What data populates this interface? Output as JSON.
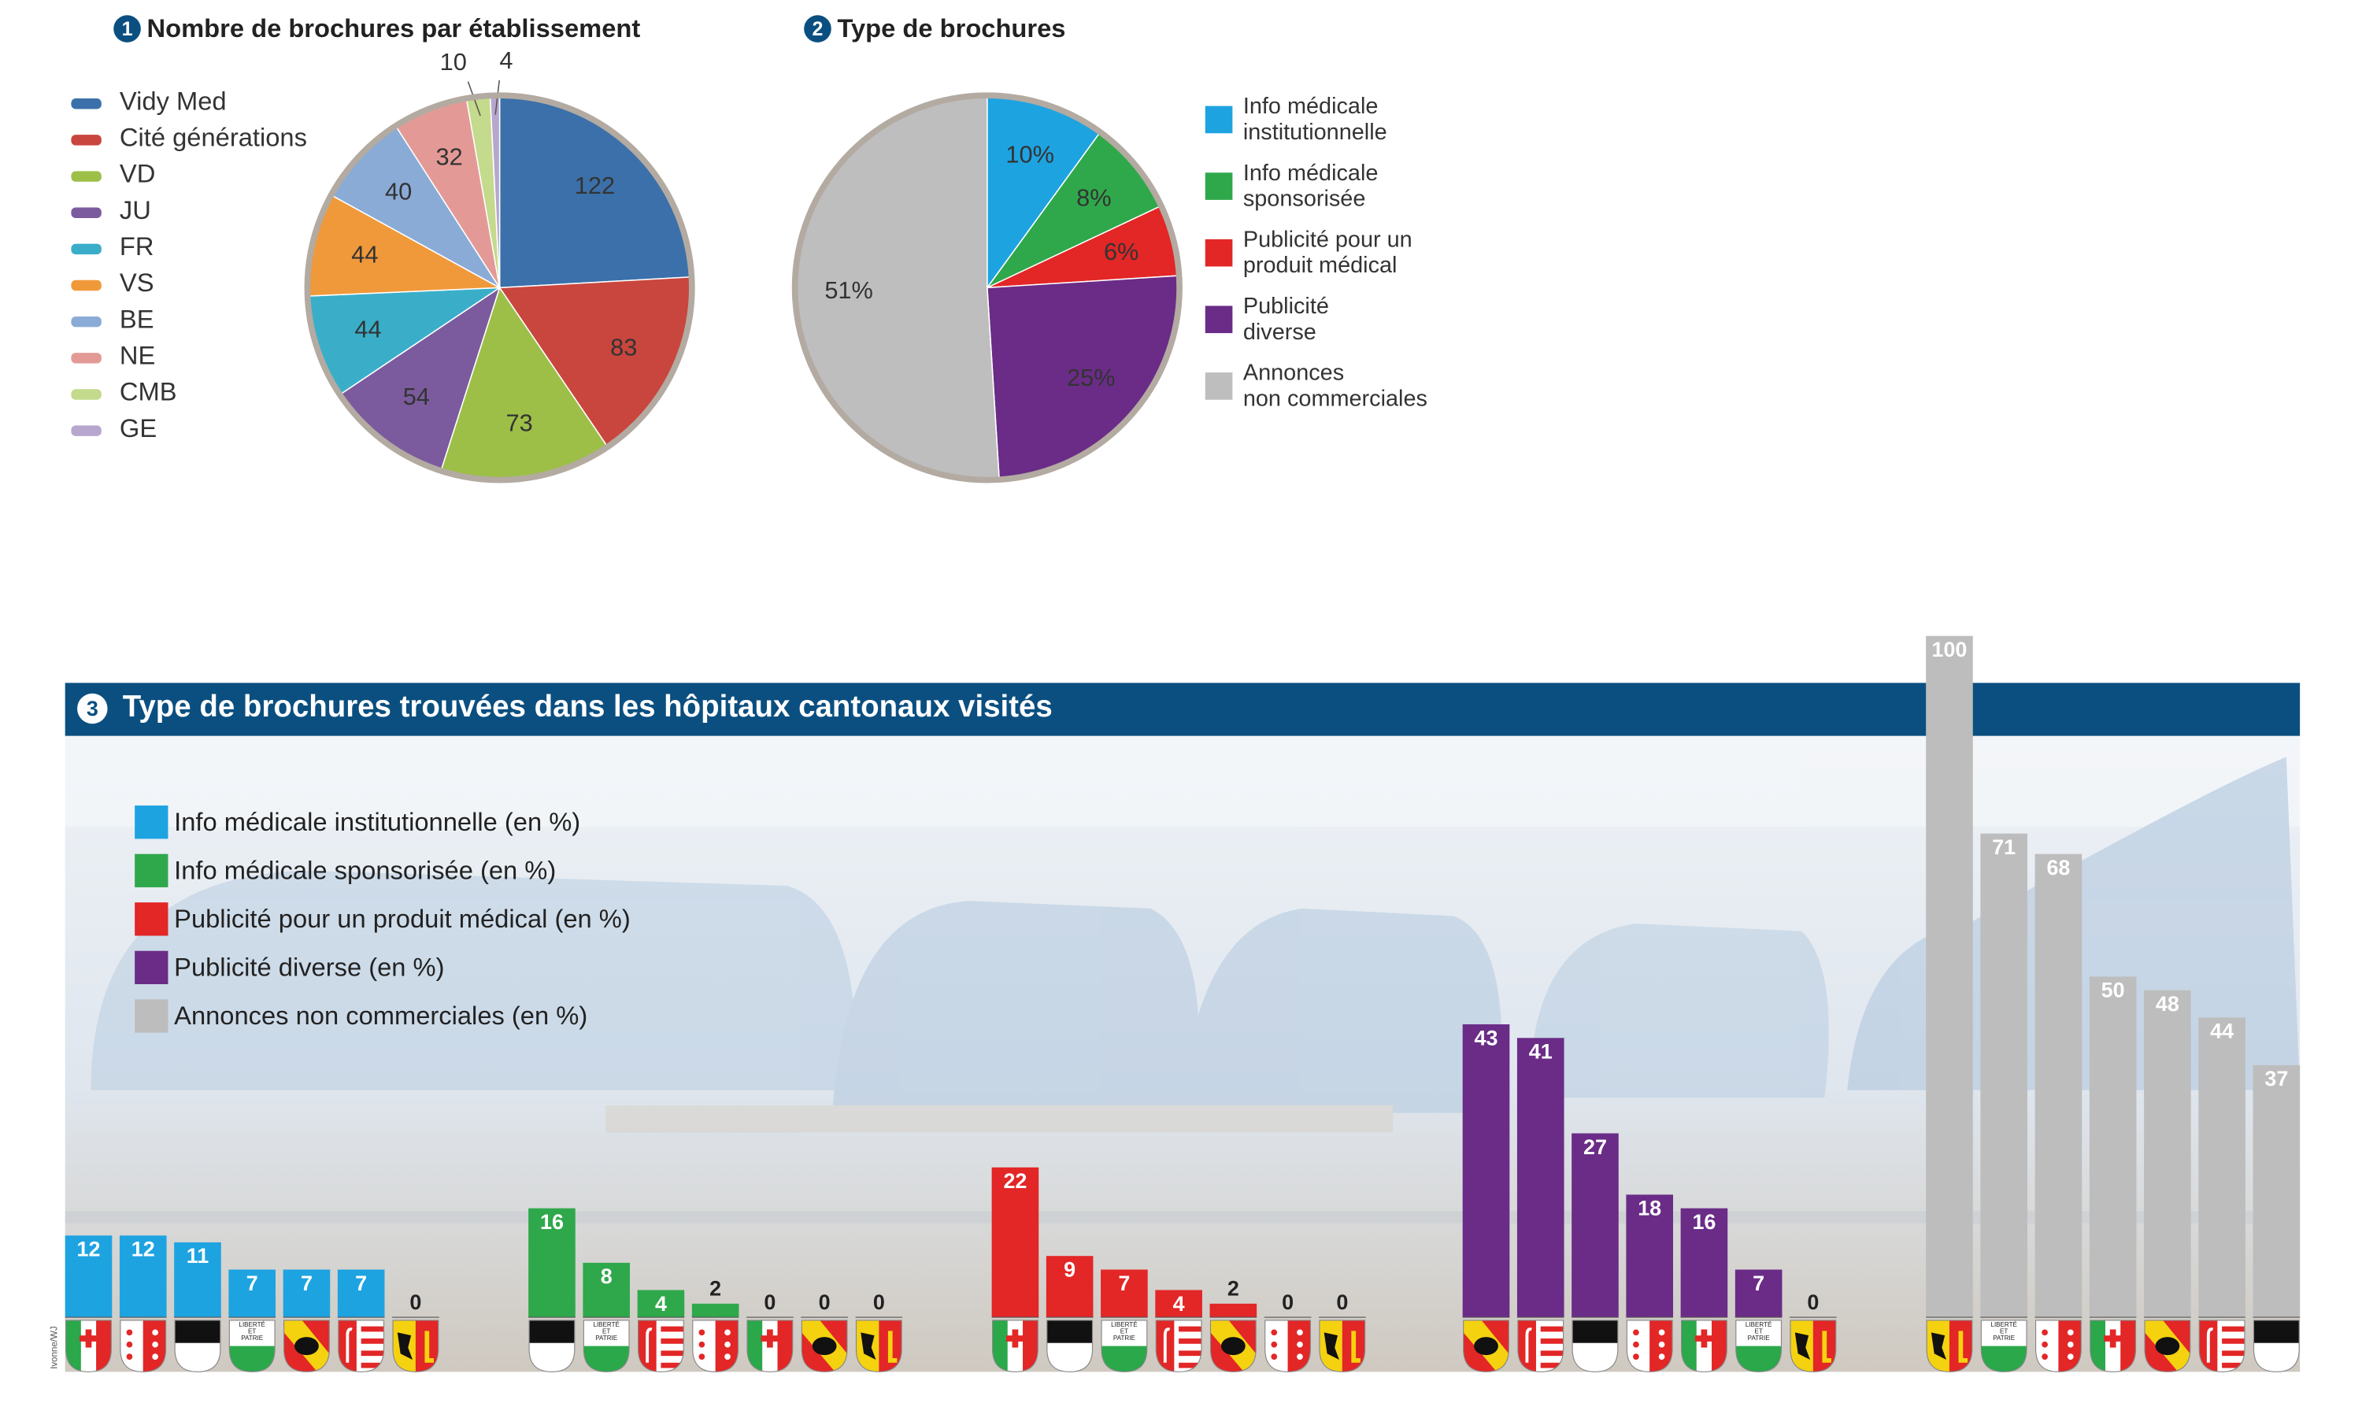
{
  "chart_data": [
    {
      "type": "pie",
      "number": "1",
      "title": "Nombre de brochures par établissement",
      "categories": [
        "Vidy Med",
        "Cité générations",
        "VD",
        "JU",
        "FR",
        "VS",
        "BE",
        "NE",
        "CMB",
        "GE"
      ],
      "values": [
        122,
        83,
        73,
        54,
        44,
        44,
        40,
        32,
        10,
        4
      ],
      "colors": [
        "#3b70aa",
        "#c9463e",
        "#9dbf48",
        "#7b5b9e",
        "#3aaec9",
        "#f0993a",
        "#8aabd6",
        "#e39a96",
        "#c4da8c",
        "#b7a7cf"
      ]
    },
    {
      "type": "pie",
      "number": "2",
      "title": "Type de brochures",
      "categories": [
        "Info médicale\ninstitutionnelle",
        "Info médicale\nsponsorisée",
        "Publicité pour un\nproduit médical",
        "Publicité\ndiverse",
        "Annonces\nnon commerciales"
      ],
      "values": [
        10,
        8,
        6,
        25,
        51
      ],
      "value_labels": [
        "10%",
        "8%",
        "6%",
        "25%",
        "51%"
      ],
      "colors": [
        "#1ea3e1",
        "#2fa84b",
        "#e32626",
        "#6a2c87",
        "#bebebe"
      ]
    },
    {
      "type": "bar",
      "number": "3",
      "title": "Type de brochures trouvées dans les hôpitaux cantonaux visités",
      "series": [
        {
          "name": "Info médicale institutionnelle (en %)",
          "color": "#1ea3e1",
          "values": [
            12,
            12,
            11,
            7,
            7,
            7,
            0
          ]
        },
        {
          "name": "Info médicale sponsorisée (en %)",
          "color": "#2fa84b",
          "values": [
            16,
            8,
            4,
            2,
            0,
            0,
            0
          ]
        },
        {
          "name": "Publicité pour un produit médical (en %)",
          "color": "#e32626",
          "values": [
            22,
            9,
            7,
            4,
            2,
            0,
            0
          ]
        },
        {
          "name": "Publicité diverse (en %)",
          "color": "#6a2c87",
          "values": [
            43,
            41,
            27,
            18,
            16,
            7,
            0
          ]
        },
        {
          "name": "Annonces non commerciales (en %)",
          "color": "#bdbdbd",
          "values": [
            100,
            71,
            68,
            50,
            48,
            44,
            37
          ]
        }
      ],
      "flag_motto": [
        "LIBERTÉ",
        "ET",
        "PATRIE"
      ],
      "credit": "Ivonne/WJ"
    }
  ]
}
